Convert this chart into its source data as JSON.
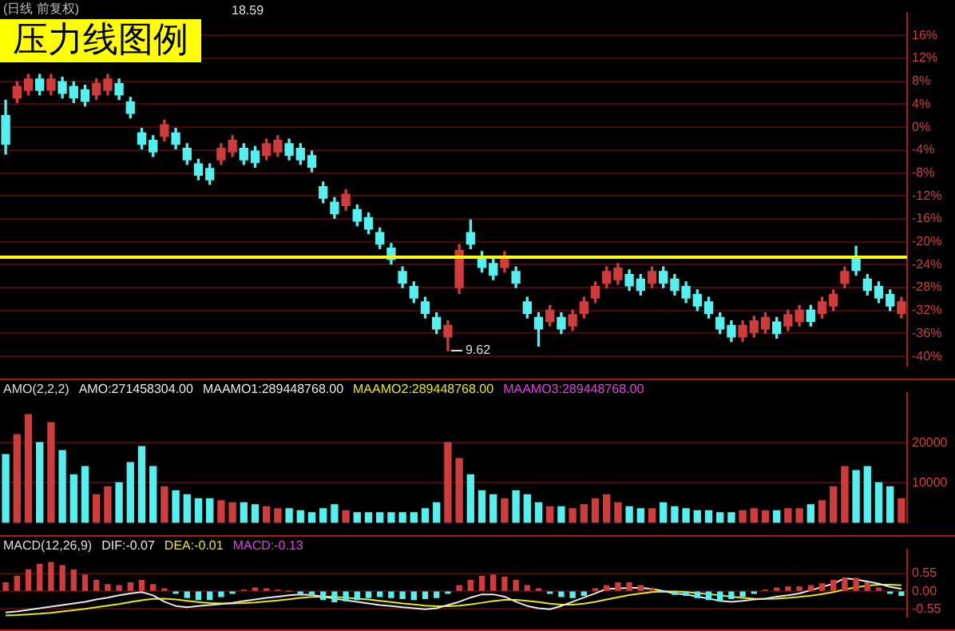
{
  "chart_data": [
    {
      "type": "candlestick",
      "title": "压力线图例",
      "subtitle": "(日线 前复权)",
      "categories": [
        null,
        null,
        null,
        null,
        null,
        null,
        null,
        null,
        null,
        null,
        null,
        null,
        null,
        null,
        null,
        null,
        null,
        null,
        null,
        null,
        null,
        null,
        null,
        null,
        null,
        null,
        null,
        null,
        null,
        null,
        null,
        null,
        null,
        null,
        null,
        null,
        null,
        null,
        null,
        null,
        null,
        null,
        null,
        null,
        null,
        null,
        null,
        null,
        null,
        null,
        null,
        null,
        null,
        null,
        null,
        null,
        null,
        null,
        null,
        null,
        null,
        null,
        null,
        null,
        null,
        null,
        null,
        null,
        null,
        null,
        null,
        null,
        null,
        null,
        null,
        null,
        null,
        null,
        null,
        null
      ],
      "ohlc": [
        [
          2,
          4.7,
          -4.7,
          -3
        ],
        [
          5.1,
          7.9,
          4.3,
          7.1
        ],
        [
          6.4,
          9.2,
          5.6,
          8.4
        ],
        [
          8.4,
          9.2,
          5.6,
          6.4
        ],
        [
          6.4,
          9.2,
          5.6,
          8.4
        ],
        [
          7.9,
          8.7,
          5.1,
          5.9
        ],
        [
          7.1,
          7.9,
          4.3,
          5.1
        ],
        [
          6.5,
          7.3,
          3.7,
          4.5
        ],
        [
          5.6,
          8.4,
          4.8,
          7.6
        ],
        [
          6.4,
          9.2,
          5.6,
          8.4
        ],
        [
          7.6,
          8.4,
          4.8,
          5.6
        ],
        [
          4.4,
          5.2,
          1.6,
          2.4
        ],
        [
          -1,
          -0.2,
          -3.8,
          -3
        ],
        [
          -2.3,
          -1.5,
          -5.1,
          -4.3
        ],
        [
          -1.6,
          1.2,
          -2.4,
          0.4
        ],
        [
          -1,
          -0.2,
          -3.8,
          -3
        ],
        [
          -3.7,
          -2.9,
          -6.5,
          -5.7
        ],
        [
          -6.4,
          -5.6,
          -9.2,
          -8.4
        ],
        [
          -7.2,
          -6.4,
          -10,
          -9.2
        ],
        [
          -5.7,
          -2.9,
          -6.5,
          -3.7
        ],
        [
          -4.3,
          -1.5,
          -5.1,
          -2.3
        ],
        [
          -3.7,
          -2.9,
          -6.5,
          -5.7
        ],
        [
          -4.2,
          -3.4,
          -7,
          -6.2
        ],
        [
          -4.9,
          -2.1,
          -5.7,
          -2.9
        ],
        [
          -4.3,
          -1.5,
          -5.1,
          -2.3
        ],
        [
          -2.9,
          -2.1,
          -5.7,
          -4.9
        ],
        [
          -3.7,
          -2.9,
          -6.5,
          -5.7
        ],
        [
          -5,
          -4.2,
          -7.8,
          -7
        ],
        [
          -10.4,
          -9.6,
          -13.2,
          -12.4
        ],
        [
          -13.1,
          -12.3,
          -15.9,
          -15.1
        ],
        [
          -13.7,
          -10.9,
          -14.5,
          -11.7
        ],
        [
          -14.4,
          -13.6,
          -17.2,
          -16.4
        ],
        [
          -15.8,
          -15,
          -18.6,
          -17.8
        ],
        [
          -18.4,
          -17.6,
          -21.2,
          -20.4
        ],
        [
          -21.1,
          -20.3,
          -23.9,
          -23.1
        ],
        [
          -25.2,
          -24.4,
          -28,
          -27.2
        ],
        [
          -27.8,
          -27,
          -30.6,
          -29.8
        ],
        [
          -30.5,
          -29.7,
          -33.3,
          -32.5
        ],
        [
          -33.2,
          -32.4,
          -36,
          -35.2
        ],
        [
          -36.6,
          -33.8,
          -39,
          -34.6
        ],
        [
          -28,
          -20.5,
          -29,
          -21.5
        ],
        [
          -18.4,
          -16.2,
          -21.2,
          -20.4
        ],
        [
          -22.5,
          -21.7,
          -25.3,
          -24.5
        ],
        [
          -23.8,
          -23,
          -26.6,
          -25.8
        ],
        [
          -24.5,
          -21.7,
          -25.3,
          -22.5
        ],
        [
          -25.2,
          -24.4,
          -28,
          -27.2
        ],
        [
          -30.5,
          -29.7,
          -33.3,
          -32.5
        ],
        [
          -33.2,
          -32.4,
          -38.2,
          -35.2
        ],
        [
          -33.9,
          -31.1,
          -34.7,
          -31.9
        ],
        [
          -33.2,
          -32.4,
          -36,
          -35.2
        ],
        [
          -34.7,
          -31.9,
          -35.5,
          -32.7
        ],
        [
          -32.5,
          -29.7,
          -33.3,
          -30.5
        ],
        [
          -29.8,
          -27,
          -30.6,
          -27.8
        ],
        [
          -27.2,
          -24.4,
          -28,
          -25.2
        ],
        [
          -26.6,
          -23.8,
          -27.4,
          -24.6
        ],
        [
          -25.7,
          -24.9,
          -28.5,
          -27.7
        ],
        [
          -26.5,
          -25.7,
          -29.3,
          -28.5
        ],
        [
          -27.2,
          -24.4,
          -28,
          -25.2
        ],
        [
          -25.2,
          -24.4,
          -28,
          -27.2
        ],
        [
          -26.5,
          -25.7,
          -29.3,
          -28.5
        ],
        [
          -27.8,
          -27,
          -30.6,
          -29.8
        ],
        [
          -29.2,
          -28.4,
          -32,
          -31.2
        ],
        [
          -30.5,
          -29.7,
          -33.3,
          -32.5
        ],
        [
          -33.2,
          -32.4,
          -36,
          -35.2
        ],
        [
          -34.6,
          -33.8,
          -37.4,
          -36.6
        ],
        [
          -36.6,
          -33.8,
          -37.4,
          -34.6
        ],
        [
          -35.8,
          -33,
          -36.6,
          -33.8
        ],
        [
          -35.2,
          -32.4,
          -36,
          -33.2
        ],
        [
          -34,
          -33.2,
          -36.8,
          -36
        ],
        [
          -34.7,
          -31.9,
          -35.5,
          -32.7
        ],
        [
          -33.9,
          -31.1,
          -34.7,
          -31.9
        ],
        [
          -31.9,
          -31.1,
          -34.7,
          -33.9
        ],
        [
          -32.5,
          -29.7,
          -33.3,
          -30.5
        ],
        [
          -31.2,
          -28.4,
          -32,
          -29.2
        ],
        [
          -27.2,
          -24.4,
          -28,
          -25.2
        ],
        [
          -23,
          -20.8,
          -25.8,
          -25
        ],
        [
          -26.5,
          -25.7,
          -29.3,
          -28.5
        ],
        [
          -27.8,
          -27,
          -30.6,
          -29.8
        ],
        [
          -29.2,
          -28.4,
          -32,
          -31.2
        ],
        [
          -32.5,
          -29.7,
          -33.3,
          -30.5
        ]
      ],
      "colors": [
        "#54f0f0",
        "#d03c3c",
        "#d03c3c",
        "#54f0f0",
        "#d03c3c",
        "#54f0f0",
        "#54f0f0",
        "#54f0f0",
        "#d03c3c",
        "#d03c3c",
        "#54f0f0",
        "#54f0f0",
        "#54f0f0",
        "#54f0f0",
        "#d03c3c",
        "#54f0f0",
        "#54f0f0",
        "#54f0f0",
        "#54f0f0",
        "#d03c3c",
        "#d03c3c",
        "#54f0f0",
        "#54f0f0",
        "#d03c3c",
        "#d03c3c",
        "#54f0f0",
        "#54f0f0",
        "#54f0f0",
        "#54f0f0",
        "#54f0f0",
        "#d03c3c",
        "#54f0f0",
        "#54f0f0",
        "#54f0f0",
        "#54f0f0",
        "#54f0f0",
        "#54f0f0",
        "#54f0f0",
        "#54f0f0",
        "#d03c3c",
        "#d03c3c",
        "#54f0f0",
        "#54f0f0",
        "#54f0f0",
        "#d03c3c",
        "#54f0f0",
        "#54f0f0",
        "#54f0f0",
        "#d03c3c",
        "#54f0f0",
        "#d03c3c",
        "#d03c3c",
        "#d03c3c",
        "#d03c3c",
        "#d03c3c",
        "#54f0f0",
        "#54f0f0",
        "#d03c3c",
        "#54f0f0",
        "#54f0f0",
        "#54f0f0",
        "#54f0f0",
        "#54f0f0",
        "#54f0f0",
        "#54f0f0",
        "#d03c3c",
        "#d03c3c",
        "#d03c3c",
        "#54f0f0",
        "#d03c3c",
        "#d03c3c",
        "#54f0f0",
        "#d03c3c",
        "#d03c3c",
        "#d03c3c",
        "#54f0f0",
        "#54f0f0",
        "#54f0f0",
        "#54f0f0",
        "#d03c3c"
      ],
      "ylim": [
        -41.7,
        20
      ],
      "yticks": [
        {
          "value": 16,
          "label": "16%"
        },
        {
          "value": 12,
          "label": "12%"
        },
        {
          "value": 8,
          "label": "8%"
        },
        {
          "value": 4,
          "label": "4%"
        },
        {
          "value": 0,
          "label": "0%"
        },
        {
          "value": -4,
          "label": "-4%"
        },
        {
          "value": -8,
          "label": "-8%"
        },
        {
          "value": -12,
          "label": "-12%"
        },
        {
          "value": -16,
          "label": "-16%"
        },
        {
          "value": -20,
          "label": "-20%"
        },
        {
          "value": -24,
          "label": "-24%"
        },
        {
          "value": -28,
          "label": "-28%"
        },
        {
          "value": -32,
          "label": "-32%"
        },
        {
          "value": -36,
          "label": "-36%"
        },
        {
          "value": -40,
          "label": "-40%"
        }
      ],
      "grid": "y",
      "tick_labels": "y",
      "ref_lines": [
        {
          "axis": "y",
          "value": -22.7,
          "color": "#ffff00"
        }
      ],
      "annotations": [
        "18.59",
        "9.62"
      ]
    },
    {
      "type": "bar",
      "title": "AMO(2,2,2)",
      "categories": [
        null,
        null,
        null,
        null,
        null,
        null,
        null,
        null,
        null,
        null,
        null,
        null,
        null,
        null,
        null,
        null,
        null,
        null,
        null,
        null,
        null,
        null,
        null,
        null,
        null,
        null,
        null,
        null,
        null,
        null,
        null,
        null,
        null,
        null,
        null,
        null,
        null,
        null,
        null,
        null,
        null,
        null,
        null,
        null,
        null,
        null,
        null,
        null,
        null,
        null,
        null,
        null,
        null,
        null,
        null,
        null,
        null,
        null,
        null,
        null,
        null,
        null,
        null,
        null,
        null,
        null,
        null,
        null,
        null,
        null,
        null,
        null,
        null,
        null,
        null,
        null,
        null,
        null,
        null,
        null
      ],
      "values": [
        17000,
        22000,
        27000,
        20000,
        25000,
        18000,
        12000,
        14000,
        7000,
        9000,
        10000,
        15000,
        19000,
        14000,
        9000,
        8000,
        7000,
        6000,
        6000,
        5500,
        5000,
        5000,
        4500,
        4000,
        3500,
        3500,
        3000,
        2500,
        3500,
        4500,
        3000,
        2500,
        2500,
        2500,
        2500,
        2500,
        2500,
        3500,
        5000,
        20000,
        16000,
        12000,
        8000,
        7000,
        6000,
        8000,
        7000,
        5000,
        4000,
        4000,
        3500,
        4500,
        6000,
        7000,
        5000,
        4000,
        3500,
        3500,
        5000,
        4000,
        3500,
        3000,
        3000,
        2500,
        2500,
        3000,
        3500,
        3000,
        3000,
        3500,
        3500,
        4500,
        5500,
        9000,
        14000,
        13000,
        14000,
        10000,
        9000,
        6000
      ],
      "colors": [
        "#54f0f0",
        "#d03c3c",
        "#d03c3c",
        "#54f0f0",
        "#d03c3c",
        "#54f0f0",
        "#54f0f0",
        "#54f0f0",
        "#d03c3c",
        "#d03c3c",
        "#54f0f0",
        "#54f0f0",
        "#54f0f0",
        "#54f0f0",
        "#d03c3c",
        "#54f0f0",
        "#54f0f0",
        "#54f0f0",
        "#54f0f0",
        "#d03c3c",
        "#d03c3c",
        "#54f0f0",
        "#54f0f0",
        "#d03c3c",
        "#d03c3c",
        "#54f0f0",
        "#54f0f0",
        "#54f0f0",
        "#54f0f0",
        "#54f0f0",
        "#d03c3c",
        "#54f0f0",
        "#54f0f0",
        "#54f0f0",
        "#54f0f0",
        "#54f0f0",
        "#54f0f0",
        "#54f0f0",
        "#54f0f0",
        "#d03c3c",
        "#d03c3c",
        "#54f0f0",
        "#54f0f0",
        "#54f0f0",
        "#d03c3c",
        "#54f0f0",
        "#54f0f0",
        "#54f0f0",
        "#d03c3c",
        "#54f0f0",
        "#d03c3c",
        "#d03c3c",
        "#d03c3c",
        "#d03c3c",
        "#d03c3c",
        "#54f0f0",
        "#54f0f0",
        "#d03c3c",
        "#54f0f0",
        "#54f0f0",
        "#54f0f0",
        "#54f0f0",
        "#54f0f0",
        "#54f0f0",
        "#54f0f0",
        "#d03c3c",
        "#d03c3c",
        "#d03c3c",
        "#54f0f0",
        "#d03c3c",
        "#d03c3c",
        "#54f0f0",
        "#d03c3c",
        "#d03c3c",
        "#d03c3c",
        "#54f0f0",
        "#54f0f0",
        "#54f0f0",
        "#54f0f0",
        "#d03c3c"
      ],
      "ylim": [
        0,
        32500
      ],
      "yticks": [
        10000,
        20000
      ],
      "grid": "y",
      "tick_labels": "y",
      "annotations": [
        "AMO:271458304.00",
        "MAAMO1:289448768.00",
        "MAAMO2:289448768.00",
        "MAAMO3:289448768.00"
      ]
    },
    {
      "type": "bar",
      "title": "MACD(12,26,9)",
      "categories": [
        null,
        null,
        null,
        null,
        null,
        null,
        null,
        null,
        null,
        null,
        null,
        null,
        null,
        null,
        null,
        null,
        null,
        null,
        null,
        null,
        null,
        null,
        null,
        null,
        null,
        null,
        null,
        null,
        null,
        null,
        null,
        null,
        null,
        null,
        null,
        null,
        null,
        null,
        null,
        null,
        null,
        null,
        null,
        null,
        null,
        null,
        null,
        null,
        null,
        null,
        null,
        null,
        null,
        null,
        null,
        null,
        null,
        null,
        null,
        null,
        null,
        null,
        null,
        null,
        null,
        null,
        null,
        null,
        null,
        null,
        null,
        null,
        null,
        null,
        null,
        null,
        null,
        null,
        null,
        null
      ],
      "series": [
        {
          "type": "bar",
          "values": [
            0.26,
            0.46,
            0.66,
            0.83,
            0.89,
            0.79,
            0.66,
            0.5,
            0.33,
            0.2,
            0.17,
            0.26,
            0.33,
            0.2,
            0.07,
            -0.07,
            -0.2,
            -0.26,
            -0.26,
            -0.17,
            -0.07,
            0.03,
            0.1,
            0.07,
            0.03,
            0,
            -0.07,
            -0.13,
            -0.26,
            -0.33,
            -0.3,
            -0.26,
            -0.2,
            -0.17,
            -0.2,
            -0.23,
            -0.26,
            -0.23,
            -0.2,
            -0.07,
            0.17,
            0.33,
            0.46,
            0.5,
            0.43,
            0.33,
            0.17,
            0.07,
            -0.07,
            -0.17,
            -0.2,
            -0.13,
            0.07,
            0.17,
            0.26,
            0.26,
            0.17,
            0.07,
            -0.03,
            -0.1,
            -0.13,
            -0.2,
            -0.26,
            -0.3,
            -0.23,
            -0.17,
            -0.07,
            0.03,
            0.1,
            0.13,
            0.13,
            0.17,
            0.23,
            0.33,
            0.4,
            0.4,
            0.26,
            0.1,
            -0.07,
            -0.13
          ],
          "colors": [
            "#d03c3c",
            "#d03c3c",
            "#d03c3c",
            "#d03c3c",
            "#d03c3c",
            "#d03c3c",
            "#d03c3c",
            "#d03c3c",
            "#d03c3c",
            "#d03c3c",
            "#d03c3c",
            "#d03c3c",
            "#d03c3c",
            "#d03c3c",
            "#d03c3c",
            "#54f0f0",
            "#54f0f0",
            "#54f0f0",
            "#54f0f0",
            "#54f0f0",
            "#54f0f0",
            "#d03c3c",
            "#d03c3c",
            "#d03c3c",
            "#d03c3c",
            "#d03c3c",
            "#54f0f0",
            "#54f0f0",
            "#54f0f0",
            "#54f0f0",
            "#54f0f0",
            "#54f0f0",
            "#54f0f0",
            "#54f0f0",
            "#54f0f0",
            "#54f0f0",
            "#54f0f0",
            "#54f0f0",
            "#54f0f0",
            "#54f0f0",
            "#d03c3c",
            "#d03c3c",
            "#d03c3c",
            "#d03c3c",
            "#d03c3c",
            "#d03c3c",
            "#d03c3c",
            "#d03c3c",
            "#54f0f0",
            "#54f0f0",
            "#54f0f0",
            "#54f0f0",
            "#d03c3c",
            "#d03c3c",
            "#d03c3c",
            "#d03c3c",
            "#d03c3c",
            "#d03c3c",
            "#54f0f0",
            "#54f0f0",
            "#54f0f0",
            "#54f0f0",
            "#54f0f0",
            "#54f0f0",
            "#54f0f0",
            "#54f0f0",
            "#54f0f0",
            "#d03c3c",
            "#d03c3c",
            "#d03c3c",
            "#d03c3c",
            "#d03c3c",
            "#d03c3c",
            "#d03c3c",
            "#d03c3c",
            "#d03c3c",
            "#d03c3c",
            "#d03c3c",
            "#54f0f0",
            "#54f0f0"
          ]
        },
        {
          "type": "line",
          "name": "DIF:-0.07",
          "color": "#e8e8e8",
          "values": [
            -0.66,
            -0.63,
            -0.58,
            -0.53,
            -0.48,
            -0.43,
            -0.38,
            -0.33,
            -0.26,
            -0.2,
            -0.13,
            -0.07,
            -0.03,
            -0.13,
            -0.33,
            -0.46,
            -0.5,
            -0.46,
            -0.43,
            -0.4,
            -0.36,
            -0.31,
            -0.26,
            -0.21,
            -0.17,
            -0.13,
            -0.1,
            -0.12,
            -0.17,
            -0.23,
            -0.28,
            -0.33,
            -0.38,
            -0.43,
            -0.46,
            -0.5,
            -0.53,
            -0.56,
            -0.53,
            -0.43,
            -0.33,
            -0.2,
            -0.1,
            -0.1,
            -0.17,
            -0.33,
            -0.46,
            -0.53,
            -0.56,
            -0.46,
            -0.33,
            -0.2,
            -0.07,
            0.07,
            0.08,
            0.1,
            0.1,
            0.07,
            0,
            -0.07,
            -0.1,
            -0.17,
            -0.23,
            -0.3,
            -0.33,
            -0.3,
            -0.26,
            -0.23,
            -0.17,
            -0.13,
            -0.07,
            0.03,
            0.13,
            0.23,
            0.4,
            0.36,
            0.3,
            0.23,
            0.13,
            0.07
          ]
        },
        {
          "type": "line",
          "name": "DEA:-0.01",
          "color": "#e8e800",
          "values": [
            -0.75,
            -0.74,
            -0.72,
            -0.7,
            -0.67,
            -0.63,
            -0.59,
            -0.55,
            -0.5,
            -0.45,
            -0.4,
            -0.34,
            -0.28,
            -0.24,
            -0.23,
            -0.26,
            -0.3,
            -0.34,
            -0.37,
            -0.38,
            -0.38,
            -0.37,
            -0.35,
            -0.32,
            -0.29,
            -0.25,
            -0.21,
            -0.18,
            -0.17,
            -0.18,
            -0.2,
            -0.23,
            -0.26,
            -0.3,
            -0.34,
            -0.38,
            -0.41,
            -0.45,
            -0.47,
            -0.47,
            -0.45,
            -0.41,
            -0.36,
            -0.31,
            -0.27,
            -0.27,
            -0.3,
            -0.34,
            -0.39,
            -0.42,
            -0.42,
            -0.39,
            -0.33,
            -0.26,
            -0.19,
            -0.12,
            -0.07,
            -0.03,
            -0.01,
            -0.01,
            -0.03,
            -0.06,
            -0.09,
            -0.13,
            -0.17,
            -0.21,
            -0.23,
            -0.24,
            -0.23,
            -0.21,
            -0.18,
            -0.14,
            -0.09,
            -0.03,
            0.05,
            0.12,
            0.17,
            0.2,
            0.2,
            0.18
          ]
        }
      ],
      "ylim": [
        -0.8,
        1.3
      ],
      "yticks": [
        {
          "value": 0.55,
          "label": "0.55"
        },
        {
          "value": 0,
          "label": "0.00"
        },
        {
          "value": -0.55,
          "label": "-0.55"
        }
      ],
      "grid": "y",
      "tick_labels": "y",
      "legend": "top left",
      "annotations": [
        "MACD:-0.13"
      ]
    }
  ]
}
